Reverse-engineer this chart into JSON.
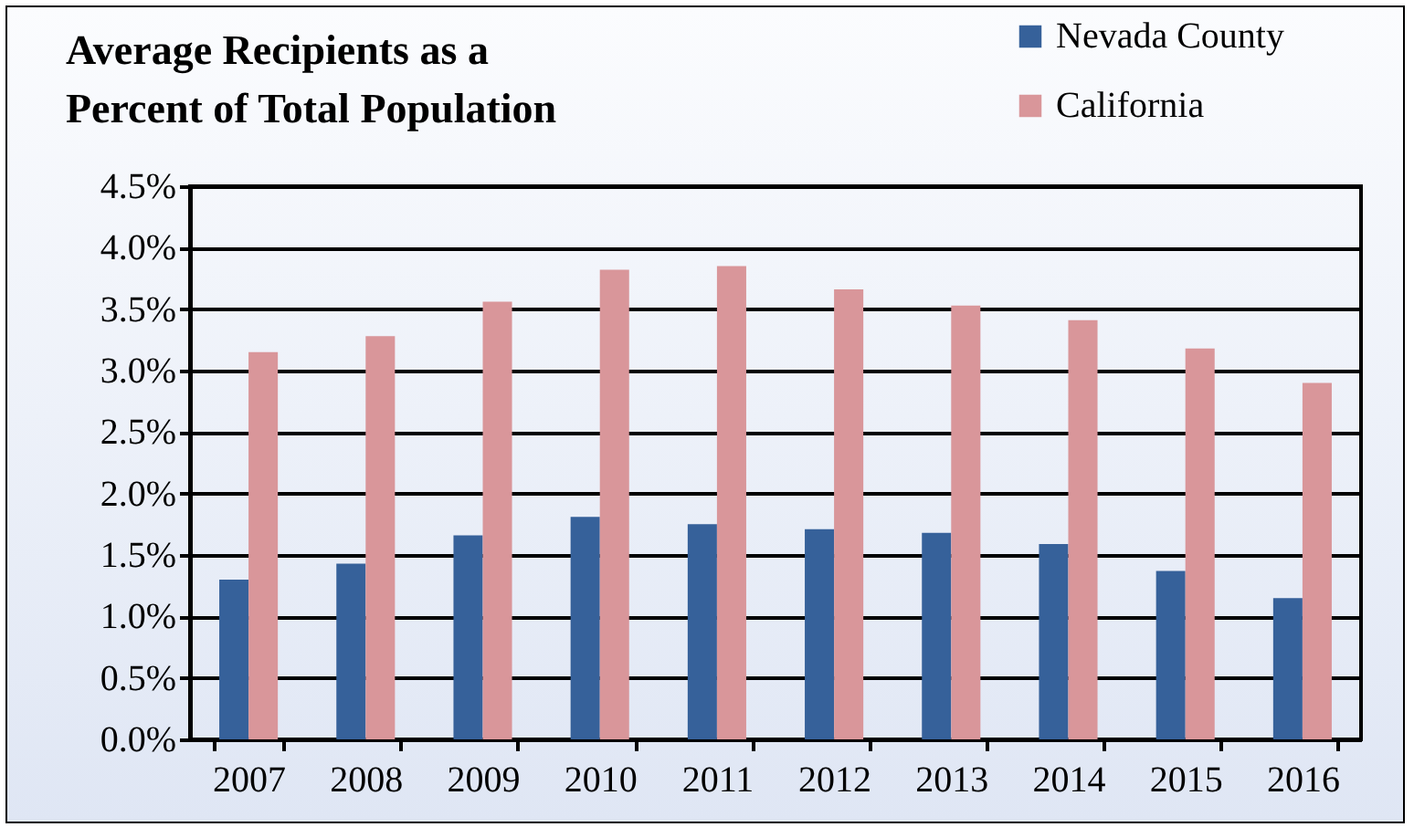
{
  "chart_data": {
    "type": "bar",
    "title": "Average Recipients as a Percent of Total Population",
    "categories": [
      "2007",
      "2008",
      "2009",
      "2010",
      "2011",
      "2012",
      "2013",
      "2014",
      "2015",
      "2016"
    ],
    "series": [
      {
        "name": "Nevada County",
        "color": "#36619a",
        "values": [
          1.3,
          1.43,
          1.66,
          1.81,
          1.75,
          1.71,
          1.68,
          1.59,
          1.37,
          1.15
        ]
      },
      {
        "name": "California",
        "color": "#d9969a",
        "values": [
          3.15,
          3.28,
          3.56,
          3.82,
          3.85,
          3.66,
          3.53,
          3.41,
          3.18,
          2.9
        ]
      }
    ],
    "ylim": [
      0,
      4.5
    ],
    "yticks": [
      {
        "value": 0,
        "label": "0.0%"
      },
      {
        "value": 0.5,
        "label": "0.5%"
      },
      {
        "value": 1,
        "label": "1.0%"
      },
      {
        "value": 1.5,
        "label": "1.5%"
      },
      {
        "value": 2,
        "label": "2.0%"
      },
      {
        "value": 2.5,
        "label": "2.5%"
      },
      {
        "value": 3,
        "label": "3.0%"
      },
      {
        "value": 3.5,
        "label": "3.5%"
      },
      {
        "value": 4,
        "label": "4.0%"
      },
      {
        "value": 4.5,
        "label": "4.5%"
      }
    ],
    "grid": "y",
    "legend": "top right"
  }
}
